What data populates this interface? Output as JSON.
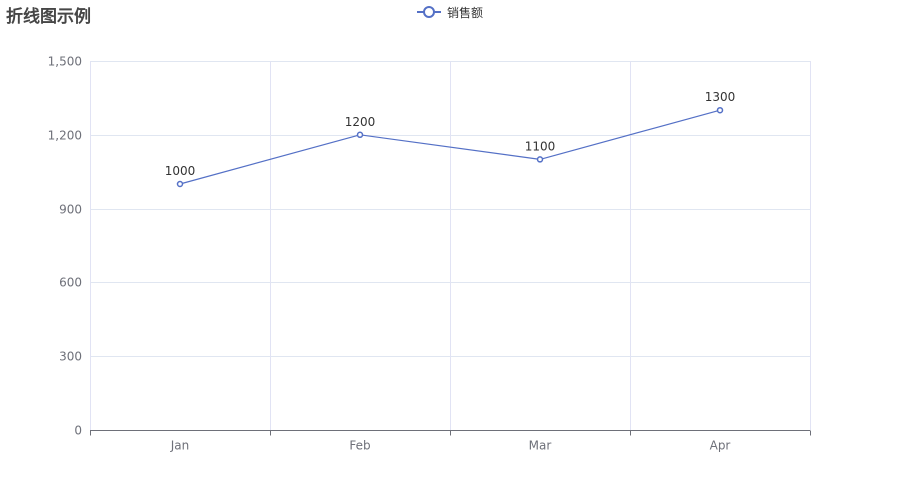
{
  "colors": {
    "series": "#5470c6",
    "axis_line": "#6e7079",
    "axis_label": "#6e7079",
    "grid_line": "#e0e6f1",
    "vertical_grid_line": "#e1e3f4",
    "data_label": "#333333",
    "title": "#464646"
  },
  "chart_data": {
    "type": "line",
    "title": "折线图示例",
    "categories": [
      "Jan",
      "Feb",
      "Mar",
      "Apr"
    ],
    "series": [
      {
        "name": "销售额",
        "values": [
          1000,
          1200,
          1100,
          1300
        ],
        "labels": [
          "1000",
          "1200",
          "1100",
          "1300"
        ],
        "color": "#5470c6"
      }
    ],
    "y_ticks": [
      0,
      300,
      600,
      900,
      1200,
      1500
    ],
    "y_tick_labels": [
      "0",
      "300",
      "600",
      "900",
      "1,200",
      "1,500"
    ],
    "ylim": [
      0,
      1500
    ],
    "grid": true,
    "legend_position": "top-center",
    "xlabel": "",
    "ylabel": ""
  }
}
